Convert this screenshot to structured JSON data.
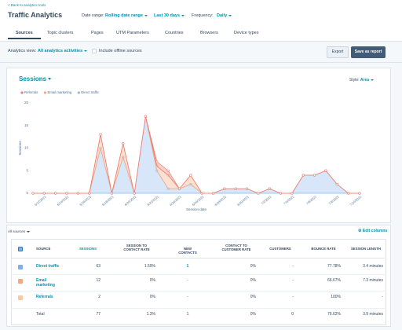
{
  "header": {
    "back_link": "< Back to analytics tools",
    "title": "Traffic Analytics",
    "date_range_label": "Date range:",
    "date_range": "Rolling date range",
    "period": "Last 30 days",
    "frequency_label": "Frequency:",
    "frequency": "Daily"
  },
  "tabs": [
    "Sources",
    "Topic clusters",
    "Pages",
    "UTM Parameters",
    "Countries",
    "Browsers",
    "Device types"
  ],
  "toolbar": {
    "view_label": "Analytics view:",
    "view": "All analytics activities",
    "offline": "Include offline sources",
    "export": "Export",
    "save": "Save as report"
  },
  "chart_controls": {
    "style_label": "Style:",
    "style": "Area"
  },
  "chart_data": {
    "type": "area",
    "title": "Sessions",
    "y_label": "Sessions",
    "x_label": "Session date",
    "stacked": true,
    "categories": [
      null,
      "6/12/2021",
      null,
      "6/14/2021",
      null,
      "6/16/2021",
      null,
      "6/18/2021",
      null,
      "6/20/2021",
      null,
      "6/22/2021",
      null,
      "6/24/2021",
      null,
      "6/26/2021",
      null,
      "6/28/2021",
      null,
      "6/30/2021",
      null,
      "7/2/2021",
      null,
      "7/4/2021",
      null,
      "7/6/2021",
      null,
      "7/8/2021",
      null,
      "7/10/2021"
    ],
    "series": [
      {
        "name": "Referrals",
        "color": "#f07d74",
        "values": [
          0,
          0,
          0,
          0,
          0,
          0,
          0,
          0,
          0,
          0,
          0,
          1,
          1,
          0,
          0,
          0,
          0,
          0,
          0,
          0,
          0,
          0,
          0,
          0,
          0,
          0,
          0,
          0,
          0,
          0
        ]
      },
      {
        "name": "Email marketing",
        "color": "#f5a97f",
        "values": [
          0,
          0,
          0,
          0,
          0,
          0,
          3,
          0,
          3,
          0,
          0,
          1,
          3,
          0,
          2,
          0,
          0,
          0,
          0,
          0,
          0,
          0,
          0,
          0,
          0,
          0,
          0,
          0,
          0,
          0
        ]
      },
      {
        "name": "Direct traffic",
        "color": "#8bbbee",
        "values": [
          0,
          0,
          0,
          0,
          0,
          0,
          10,
          0,
          8,
          0,
          17,
          5,
          1,
          1,
          2,
          0,
          0,
          1,
          1,
          1,
          0,
          1,
          0,
          0,
          4,
          4,
          5,
          2,
          0,
          0
        ]
      }
    ],
    "ylim": [
      0,
      20
    ],
    "yticks": [
      0,
      5,
      10,
      15,
      20
    ],
    "grid": false,
    "legend": "top-left"
  },
  "table": {
    "filter": "All sources",
    "edit": "Edit columns",
    "columns": [
      "SOURCE",
      "SESSIONS",
      "SESSION TO CONTACT RATE",
      "NEW CONTACTS",
      "CONTACT TO CUSTOMER RATE",
      "CUSTOMERS",
      "BOUNCE RATE",
      "SESSION LENGTH"
    ],
    "rows": [
      [
        "Direct traffic",
        "63",
        "1.59%",
        "1",
        "0%",
        "-",
        "77.78%",
        "3.4 minutes"
      ],
      [
        "Email marketing",
        "12",
        "0%",
        "-",
        "0%",
        "-",
        "66.67%",
        "7.3 minutes"
      ],
      [
        "Referrals",
        "2",
        "0%",
        "-",
        "0%",
        "-",
        "100%",
        "-"
      ],
      [
        "Total",
        "77",
        "1.3%",
        "1",
        "0%",
        "0",
        "76.62%",
        "3.9 minutes"
      ]
    ]
  }
}
